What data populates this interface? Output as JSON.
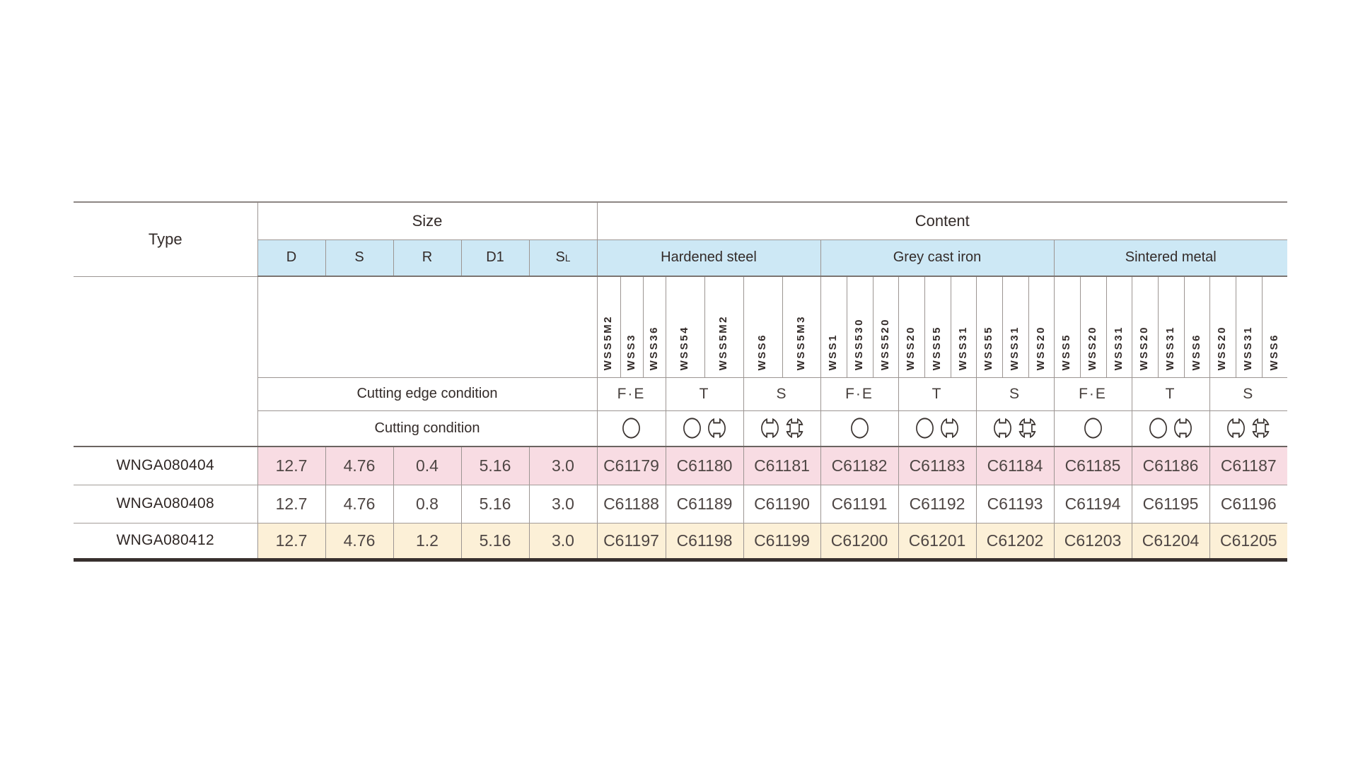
{
  "table": {
    "header": {
      "type": "Type",
      "size": "Size",
      "content": "Content"
    },
    "size_columns": [
      {
        "main": "D"
      },
      {
        "main": "S"
      },
      {
        "main": "R"
      },
      {
        "main": "D1"
      },
      {
        "main": "S",
        "sub": "L"
      }
    ],
    "row_labels": {
      "edge_condition": "Cutting edge condition",
      "cutting_condition": "Cutting condition"
    },
    "material_groups": [
      {
        "label": "Hardened steel",
        "conditions": [
          {
            "edge": "F·E",
            "grades": [
              "WSS5M2",
              "WSS3",
              "WSS36"
            ],
            "symbols": [
              "circle"
            ]
          },
          {
            "edge": "T",
            "grades": [
              "WSS54",
              "WSS5M2"
            ],
            "symbols": [
              "circle",
              "notched-circle"
            ]
          },
          {
            "edge": "S",
            "grades": [
              "WSS6",
              "WSS5M3"
            ],
            "symbols": [
              "notched-circle",
              "four-notched-circle"
            ]
          }
        ]
      },
      {
        "label": "Grey cast iron",
        "conditions": [
          {
            "edge": "F·E",
            "grades": [
              "WSS1",
              "WSS530",
              "WSS520"
            ],
            "symbols": [
              "circle"
            ]
          },
          {
            "edge": "T",
            "grades": [
              "WSS20",
              "WSS55",
              "WSS31"
            ],
            "symbols": [
              "circle",
              "notched-circle"
            ]
          },
          {
            "edge": "S",
            "grades": [
              "WSS55",
              "WSS31",
              "WSS20"
            ],
            "symbols": [
              "notched-circle",
              "four-notched-circle"
            ]
          }
        ]
      },
      {
        "label": "Sintered metal",
        "conditions": [
          {
            "edge": "F·E",
            "grades": [
              "WSS5",
              "WSS20",
              "WSS31"
            ],
            "symbols": [
              "circle"
            ]
          },
          {
            "edge": "T",
            "grades": [
              "WSS20",
              "WSS31",
              "WSS6"
            ],
            "symbols": [
              "circle",
              "notched-circle"
            ]
          },
          {
            "edge": "S",
            "grades": [
              "WSS20",
              "WSS31",
              "WSS6"
            ],
            "symbols": [
              "notched-circle",
              "four-notched-circle"
            ]
          }
        ]
      }
    ],
    "rows": [
      {
        "type": "WNGA080404",
        "size": [
          "12.7",
          "4.76",
          "0.4",
          "5.16",
          "3.0"
        ],
        "codes": [
          "C61179",
          "C61180",
          "C61181",
          "C61182",
          "C61183",
          "C61184",
          "C61185",
          "C61186",
          "C61187"
        ],
        "bg": "pink"
      },
      {
        "type": "WNGA080408",
        "size": [
          "12.7",
          "4.76",
          "0.8",
          "5.16",
          "3.0"
        ],
        "codes": [
          "C61188",
          "C61189",
          "C61190",
          "C61191",
          "C61192",
          "C61193",
          "C61194",
          "C61195",
          "C61196"
        ],
        "bg": "white"
      },
      {
        "type": "WNGA080412",
        "size": [
          "12.7",
          "4.76",
          "1.2",
          "5.16",
          "3.0"
        ],
        "codes": [
          "C61197",
          "C61198",
          "C61199",
          "C61200",
          "C61201",
          "C61202",
          "C61203",
          "C61204",
          "C61205"
        ],
        "bg": "cream"
      }
    ],
    "colors": {
      "header_blue": "#cde8f5",
      "row_pink": "#f8dce3",
      "row_cream": "#fcf0d7",
      "grid_line": "#9c9592",
      "heavy_rule": "#38302e",
      "text": "#332b29"
    }
  }
}
